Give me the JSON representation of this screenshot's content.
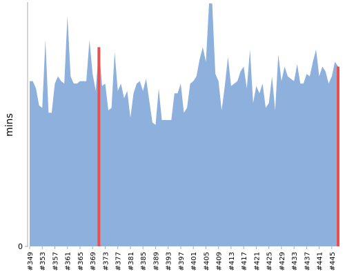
{
  "chart_data": {
    "type": "area",
    "y_label": "mins",
    "categories": [
      "#349",
      null,
      null,
      null,
      "#353",
      null,
      null,
      null,
      "#357",
      null,
      null,
      null,
      "#361",
      null,
      null,
      null,
      "#365",
      null,
      null,
      null,
      "#369",
      null,
      null,
      null,
      "#373",
      null,
      null,
      null,
      "#377",
      null,
      null,
      null,
      "#381",
      null,
      null,
      null,
      "#385",
      null,
      null,
      null,
      "#389",
      null,
      null,
      null,
      "#393",
      null,
      null,
      null,
      "#397",
      null,
      null,
      null,
      "#401",
      null,
      null,
      null,
      "#405",
      null,
      null,
      null,
      "#409",
      null,
      null,
      null,
      "#413",
      null,
      null,
      null,
      "#417",
      null,
      null,
      null,
      "#421",
      null,
      null,
      null,
      "#425",
      null,
      null,
      null,
      "#429",
      null,
      null,
      null,
      "#433",
      null,
      null,
      null,
      "#437",
      null,
      null,
      null,
      "#441",
      null,
      null,
      null,
      "#445",
      null,
      null
    ],
    "values": [
      68,
      68,
      65,
      58,
      57,
      85,
      55,
      55,
      67,
      70,
      68,
      67,
      95,
      70,
      67,
      67,
      68,
      68,
      68,
      85,
      71,
      64,
      82,
      66,
      67,
      56,
      57,
      80,
      64,
      67,
      61,
      64,
      53,
      63,
      67,
      68,
      64,
      69,
      60,
      51,
      50,
      65,
      52,
      52,
      52,
      52,
      63,
      63,
      67,
      55,
      57,
      67,
      68,
      70,
      77,
      82,
      76,
      100,
      100,
      71,
      68,
      56,
      66,
      78,
      66,
      67,
      68,
      72,
      74,
      65,
      81,
      59,
      66,
      63,
      67,
      57,
      59,
      70,
      56,
      79,
      68,
      74,
      70,
      69,
      68,
      75,
      67,
      67,
      71,
      70,
      76,
      81,
      70,
      74,
      72,
      67,
      70,
      76,
      74
    ],
    "color": "#8eb0dc",
    "highlights": [
      22,
      98
    ],
    "highlight_color": "#e8514f",
    "ylim": [
      0,
      100
    ],
    "yticks": [
      0
    ]
  }
}
